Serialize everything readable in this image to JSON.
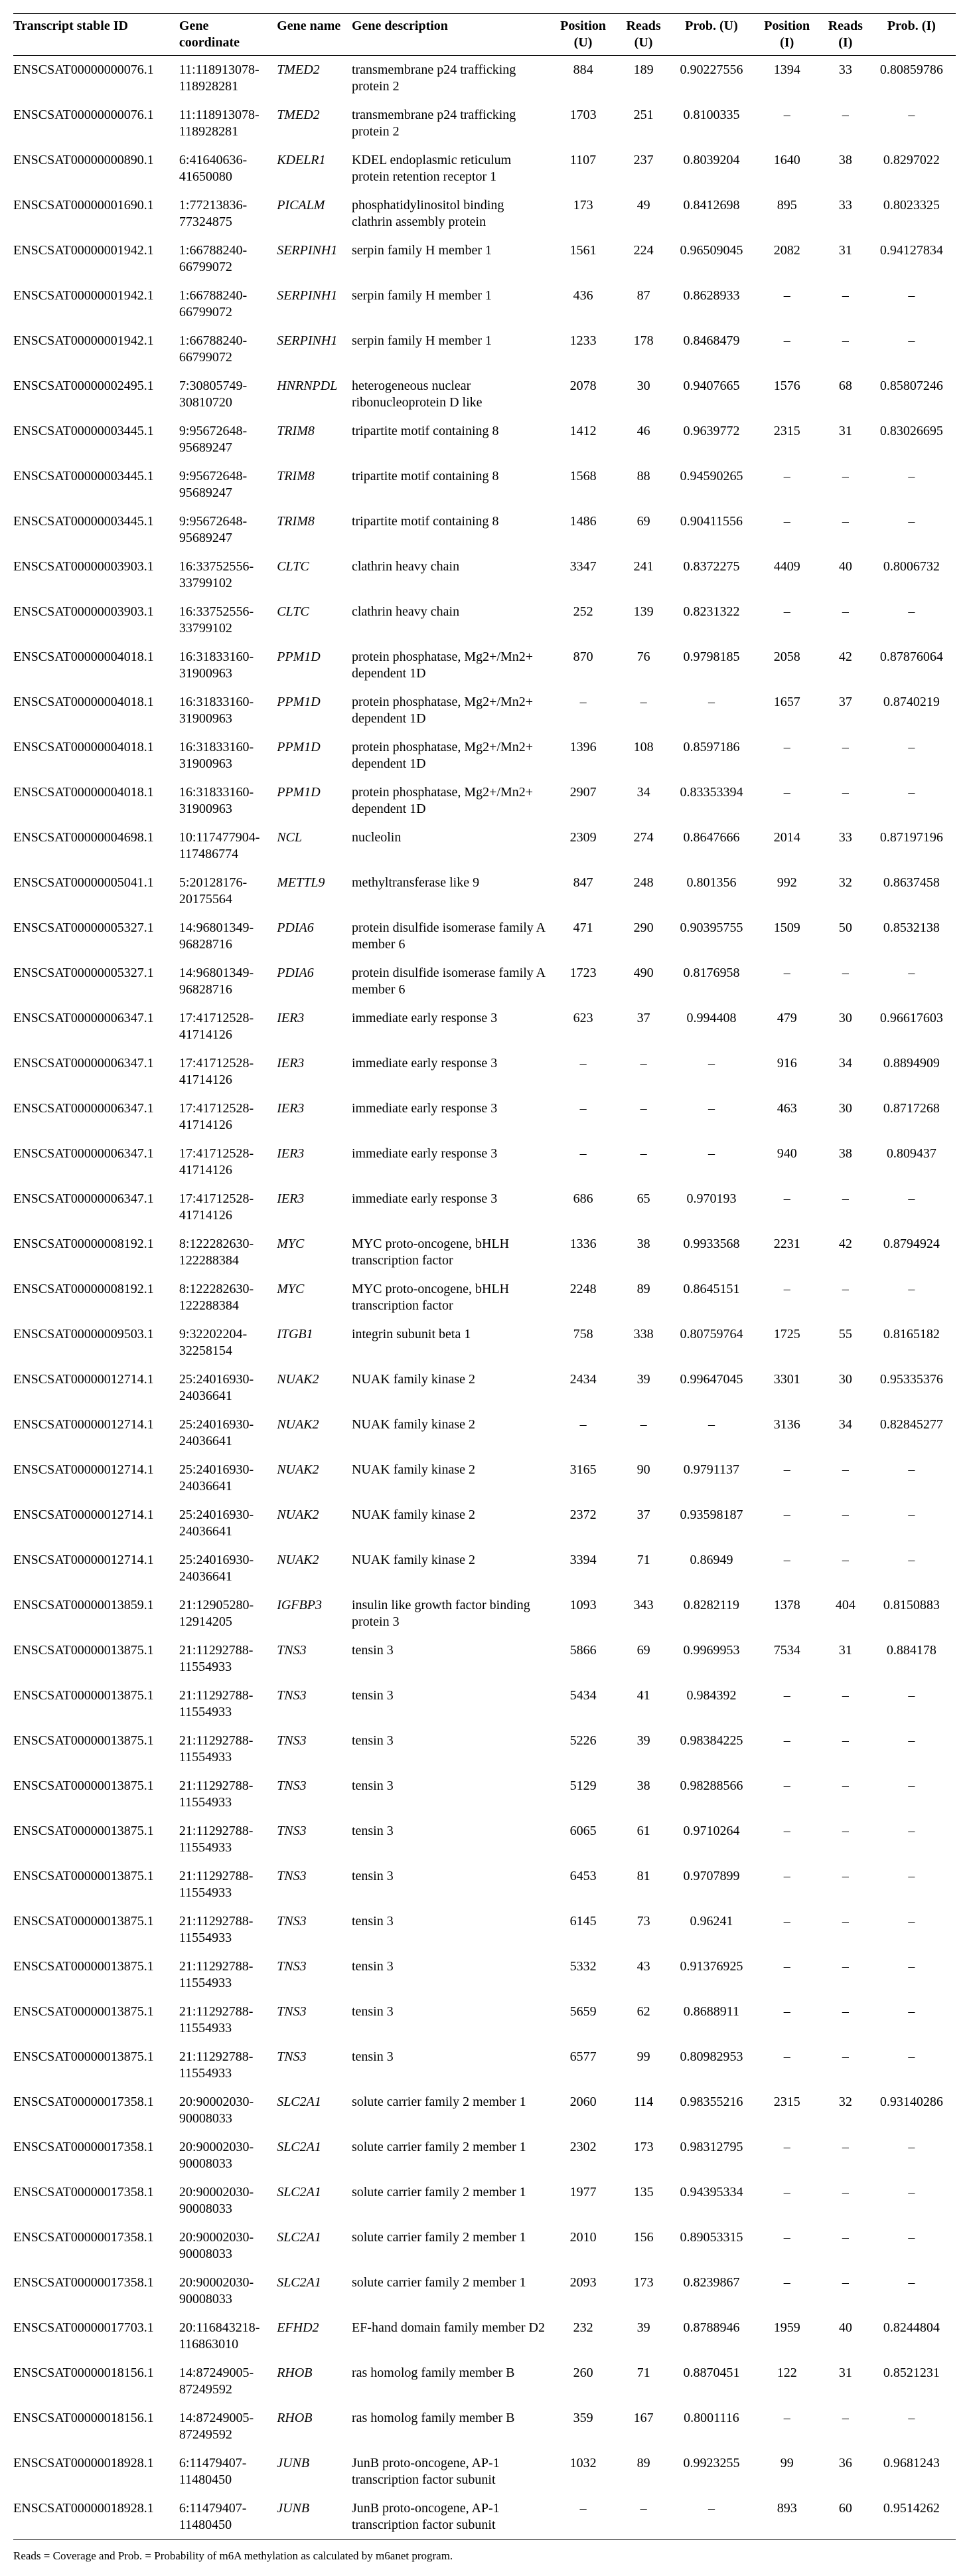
{
  "columns": [
    "Transcript stable ID",
    "Gene coordinate",
    "Gene name",
    "Gene description",
    "Position (U)",
    "Reads (U)",
    "Prob. (U)",
    "Position (I)",
    "Reads (I)",
    "Prob. (I)"
  ],
  "rows": [
    [
      "ENSCSAT00000000076.1",
      "11:118913078-118928281",
      "TMED2",
      "transmembrane p24 trafficking protein 2",
      "884",
      "189",
      "0.90227556",
      "1394",
      "33",
      "0.80859786"
    ],
    [
      "ENSCSAT00000000076.1",
      "11:118913078-118928281",
      "TMED2",
      "transmembrane p24 trafficking protein 2",
      "1703",
      "251",
      "0.8100335",
      "–",
      "–",
      "–"
    ],
    [
      "ENSCSAT00000000890.1",
      "6:41640636-41650080",
      "KDELR1",
      "KDEL endoplasmic reticulum protein retention receptor 1",
      "1107",
      "237",
      "0.8039204",
      "1640",
      "38",
      "0.8297022"
    ],
    [
      "ENSCSAT00000001690.1",
      "1:77213836-77324875",
      "PICALM",
      "phosphatidylinositol binding clathrin assembly protein",
      "173",
      "49",
      "0.8412698",
      "895",
      "33",
      "0.8023325"
    ],
    [
      "ENSCSAT00000001942.1",
      "1:66788240-66799072",
      "SERPINH1",
      "serpin family H member 1",
      "1561",
      "224",
      "0.96509045",
      "2082",
      "31",
      "0.94127834"
    ],
    [
      "ENSCSAT00000001942.1",
      "1:66788240-66799072",
      "SERPINH1",
      "serpin family H member 1",
      "436",
      "87",
      "0.8628933",
      "–",
      "–",
      "–"
    ],
    [
      "ENSCSAT00000001942.1",
      "1:66788240-66799072",
      "SERPINH1",
      "serpin family H member 1",
      "1233",
      "178",
      "0.8468479",
      "–",
      "–",
      "–"
    ],
    [
      "ENSCSAT00000002495.1",
      "7:30805749-30810720",
      "HNRNPDL",
      "heterogeneous nuclear ribonucleoprotein D like",
      "2078",
      "30",
      "0.9407665",
      "1576",
      "68",
      "0.85807246"
    ],
    [
      "ENSCSAT00000003445.1",
      "9:95672648-95689247",
      "TRIM8",
      "tripartite motif containing 8",
      "1412",
      "46",
      "0.9639772",
      "2315",
      "31",
      "0.83026695"
    ],
    [
      "ENSCSAT00000003445.1",
      "9:95672648-95689247",
      "TRIM8",
      "tripartite motif containing 8",
      "1568",
      "88",
      "0.94590265",
      "–",
      "–",
      "–"
    ],
    [
      "ENSCSAT00000003445.1",
      "9:95672648-95689247",
      "TRIM8",
      "tripartite motif containing 8",
      "1486",
      "69",
      "0.90411556",
      "–",
      "–",
      "–"
    ],
    [
      "ENSCSAT00000003903.1",
      "16:33752556-33799102",
      "CLTC",
      "clathrin heavy chain",
      "3347",
      "241",
      "0.8372275",
      "4409",
      "40",
      "0.8006732"
    ],
    [
      "ENSCSAT00000003903.1",
      "16:33752556-33799102",
      "CLTC",
      "clathrin heavy chain",
      "252",
      "139",
      "0.8231322",
      "–",
      "–",
      "–"
    ],
    [
      "ENSCSAT00000004018.1",
      "16:31833160-31900963",
      "PPM1D",
      "protein phosphatase, Mg2+/Mn2+ dependent 1D",
      "870",
      "76",
      "0.9798185",
      "2058",
      "42",
      "0.87876064"
    ],
    [
      "ENSCSAT00000004018.1",
      "16:31833160-31900963",
      "PPM1D",
      "protein phosphatase, Mg2+/Mn2+ dependent 1D",
      "–",
      "–",
      "–",
      "1657",
      "37",
      "0.8740219"
    ],
    [
      "ENSCSAT00000004018.1",
      "16:31833160-31900963",
      "PPM1D",
      "protein phosphatase, Mg2+/Mn2+ dependent 1D",
      "1396",
      "108",
      "0.8597186",
      "–",
      "–",
      "–"
    ],
    [
      "ENSCSAT00000004018.1",
      "16:31833160-31900963",
      "PPM1D",
      "protein phosphatase, Mg2+/Mn2+ dependent 1D",
      "2907",
      "34",
      "0.83353394",
      "–",
      "–",
      "–"
    ],
    [
      "ENSCSAT00000004698.1",
      "10:117477904-117486774",
      "NCL",
      "nucleolin",
      "2309",
      "274",
      "0.8647666",
      "2014",
      "33",
      "0.87197196"
    ],
    [
      "ENSCSAT00000005041.1",
      "5:20128176-20175564",
      "METTL9",
      "methyltransferase like 9",
      "847",
      "248",
      "0.801356",
      "992",
      "32",
      "0.8637458"
    ],
    [
      "ENSCSAT00000005327.1",
      "14:96801349-96828716",
      "PDIA6",
      "protein disulfide isomerase family A member 6",
      "471",
      "290",
      "0.90395755",
      "1509",
      "50",
      "0.8532138"
    ],
    [
      "ENSCSAT00000005327.1",
      "14:96801349-96828716",
      "PDIA6",
      "protein disulfide isomerase family A member 6",
      "1723",
      "490",
      "0.8176958",
      "–",
      "–",
      "–"
    ],
    [
      "ENSCSAT00000006347.1",
      "17:41712528-41714126",
      "IER3",
      "immediate early response 3",
      "623",
      "37",
      "0.994408",
      "479",
      "30",
      "0.96617603"
    ],
    [
      "ENSCSAT00000006347.1",
      "17:41712528-41714126",
      "IER3",
      "immediate early response 3",
      "–",
      "–",
      "–",
      "916",
      "34",
      "0.8894909"
    ],
    [
      "ENSCSAT00000006347.1",
      "17:41712528-41714126",
      "IER3",
      "immediate early response 3",
      "–",
      "–",
      "–",
      "463",
      "30",
      "0.8717268"
    ],
    [
      "ENSCSAT00000006347.1",
      "17:41712528-41714126",
      "IER3",
      "immediate early response 3",
      "–",
      "–",
      "–",
      "940",
      "38",
      "0.809437"
    ],
    [
      "ENSCSAT00000006347.1",
      "17:41712528-41714126",
      "IER3",
      "immediate early response 3",
      "686",
      "65",
      "0.970193",
      "–",
      "–",
      "–"
    ],
    [
      "ENSCSAT00000008192.1",
      "8:122282630-122288384",
      "MYC",
      "MYC proto-oncogene, bHLH transcription factor",
      "1336",
      "38",
      "0.9933568",
      "2231",
      "42",
      "0.8794924"
    ],
    [
      "ENSCSAT00000008192.1",
      "8:122282630-122288384",
      "MYC",
      "MYC proto-oncogene, bHLH transcription factor",
      "2248",
      "89",
      "0.8645151",
      "–",
      "–",
      "–"
    ],
    [
      "ENSCSAT00000009503.1",
      "9:32202204-32258154",
      "ITGB1",
      "integrin subunit beta 1",
      "758",
      "338",
      "0.80759764",
      "1725",
      "55",
      "0.8165182"
    ],
    [
      "ENSCSAT00000012714.1",
      "25:24016930-24036641",
      "NUAK2",
      "NUAK family kinase 2",
      "2434",
      "39",
      "0.99647045",
      "3301",
      "30",
      "0.95335376"
    ],
    [
      "ENSCSAT00000012714.1",
      "25:24016930-24036641",
      "NUAK2",
      "NUAK family kinase 2",
      "–",
      "–",
      "–",
      "3136",
      "34",
      "0.82845277"
    ],
    [
      "ENSCSAT00000012714.1",
      "25:24016930-24036641",
      "NUAK2",
      "NUAK family kinase 2",
      "3165",
      "90",
      "0.9791137",
      "–",
      "–",
      "–"
    ],
    [
      "ENSCSAT00000012714.1",
      "25:24016930-24036641",
      "NUAK2",
      "NUAK family kinase 2",
      "2372",
      "37",
      "0.93598187",
      "–",
      "–",
      "–"
    ],
    [
      "ENSCSAT00000012714.1",
      "25:24016930-24036641",
      "NUAK2",
      "NUAK family kinase 2",
      "3394",
      "71",
      "0.86949",
      "–",
      "–",
      "–"
    ],
    [
      "ENSCSAT00000013859.1",
      "21:12905280-12914205",
      "IGFBP3",
      "insulin like growth factor binding protein 3",
      "1093",
      "343",
      "0.8282119",
      "1378",
      "404",
      "0.8150883"
    ],
    [
      "ENSCSAT00000013875.1",
      "21:11292788-11554933",
      "TNS3",
      "tensin 3",
      "5866",
      "69",
      "0.9969953",
      "7534",
      "31",
      "0.884178"
    ],
    [
      "ENSCSAT00000013875.1",
      "21:11292788-11554933",
      "TNS3",
      "tensin 3",
      "5434",
      "41",
      "0.984392",
      "–",
      "–",
      "–"
    ],
    [
      "ENSCSAT00000013875.1",
      "21:11292788-11554933",
      "TNS3",
      "tensin 3",
      "5226",
      "39",
      "0.98384225",
      "–",
      "–",
      "–"
    ],
    [
      "ENSCSAT00000013875.1",
      "21:11292788-11554933",
      "TNS3",
      "tensin 3",
      "5129",
      "38",
      "0.98288566",
      "–",
      "–",
      "–"
    ],
    [
      "ENSCSAT00000013875.1",
      "21:11292788-11554933",
      "TNS3",
      "tensin 3",
      "6065",
      "61",
      "0.9710264",
      "–",
      "–",
      "–"
    ],
    [
      "ENSCSAT00000013875.1",
      "21:11292788-11554933",
      "TNS3",
      "tensin 3",
      "6453",
      "81",
      "0.9707899",
      "–",
      "–",
      "–"
    ],
    [
      "ENSCSAT00000013875.1",
      "21:11292788-11554933",
      "TNS3",
      "tensin 3",
      "6145",
      "73",
      "0.96241",
      "–",
      "–",
      "–"
    ],
    [
      "ENSCSAT00000013875.1",
      "21:11292788-11554933",
      "TNS3",
      "tensin 3",
      "5332",
      "43",
      "0.91376925",
      "–",
      "–",
      "–"
    ],
    [
      "ENSCSAT00000013875.1",
      "21:11292788-11554933",
      "TNS3",
      "tensin 3",
      "5659",
      "62",
      "0.8688911",
      "–",
      "–",
      "–"
    ],
    [
      "ENSCSAT00000013875.1",
      "21:11292788-11554933",
      "TNS3",
      "tensin 3",
      "6577",
      "99",
      "0.80982953",
      "–",
      "–",
      "–"
    ],
    [
      "ENSCSAT00000017358.1",
      "20:90002030-90008033",
      "SLC2A1",
      "solute carrier family 2 member 1",
      "2060",
      "114",
      "0.98355216",
      "2315",
      "32",
      "0.93140286"
    ],
    [
      "ENSCSAT00000017358.1",
      "20:90002030-90008033",
      "SLC2A1",
      "solute carrier family 2 member 1",
      "2302",
      "173",
      "0.98312795",
      "–",
      "–",
      "–"
    ],
    [
      "ENSCSAT00000017358.1",
      "20:90002030-90008033",
      "SLC2A1",
      "solute carrier family 2 member 1",
      "1977",
      "135",
      "0.94395334",
      "–",
      "–",
      "–"
    ],
    [
      "ENSCSAT00000017358.1",
      "20:90002030-90008033",
      "SLC2A1",
      "solute carrier family 2 member 1",
      "2010",
      "156",
      "0.89053315",
      "–",
      "–",
      "–"
    ],
    [
      "ENSCSAT00000017358.1",
      "20:90002030-90008033",
      "SLC2A1",
      "solute carrier family 2 member 1",
      "2093",
      "173",
      "0.8239867",
      "–",
      "–",
      "–"
    ],
    [
      "ENSCSAT00000017703.1",
      "20:116843218-116863010",
      "EFHD2",
      "EF-hand domain family member D2",
      "232",
      "39",
      "0.8788946",
      "1959",
      "40",
      "0.8244804"
    ],
    [
      "ENSCSAT00000018156.1",
      "14:87249005-87249592",
      "RHOB",
      "ras homolog family member B",
      "260",
      "71",
      "0.8870451",
      "122",
      "31",
      "0.8521231"
    ],
    [
      "ENSCSAT00000018156.1",
      "14:87249005-87249592",
      "RHOB",
      "ras homolog family member B",
      "359",
      "167",
      "0.8001116",
      "–",
      "–",
      "–"
    ],
    [
      "ENSCSAT00000018928.1",
      "6:11479407-11480450",
      "JUNB",
      "JunB proto-oncogene, AP-1 transcription factor subunit",
      "1032",
      "89",
      "0.9923255",
      "99",
      "36",
      "0.9681243"
    ],
    [
      "ENSCSAT00000018928.1",
      "6:11479407-11480450",
      "JUNB",
      "JunB proto-oncogene, AP-1 transcription factor subunit",
      "–",
      "–",
      "–",
      "893",
      "60",
      "0.9514262"
    ]
  ],
  "footnote": "Reads = Coverage and Prob. = Probability of m6A methylation as calculated by m6anet program."
}
